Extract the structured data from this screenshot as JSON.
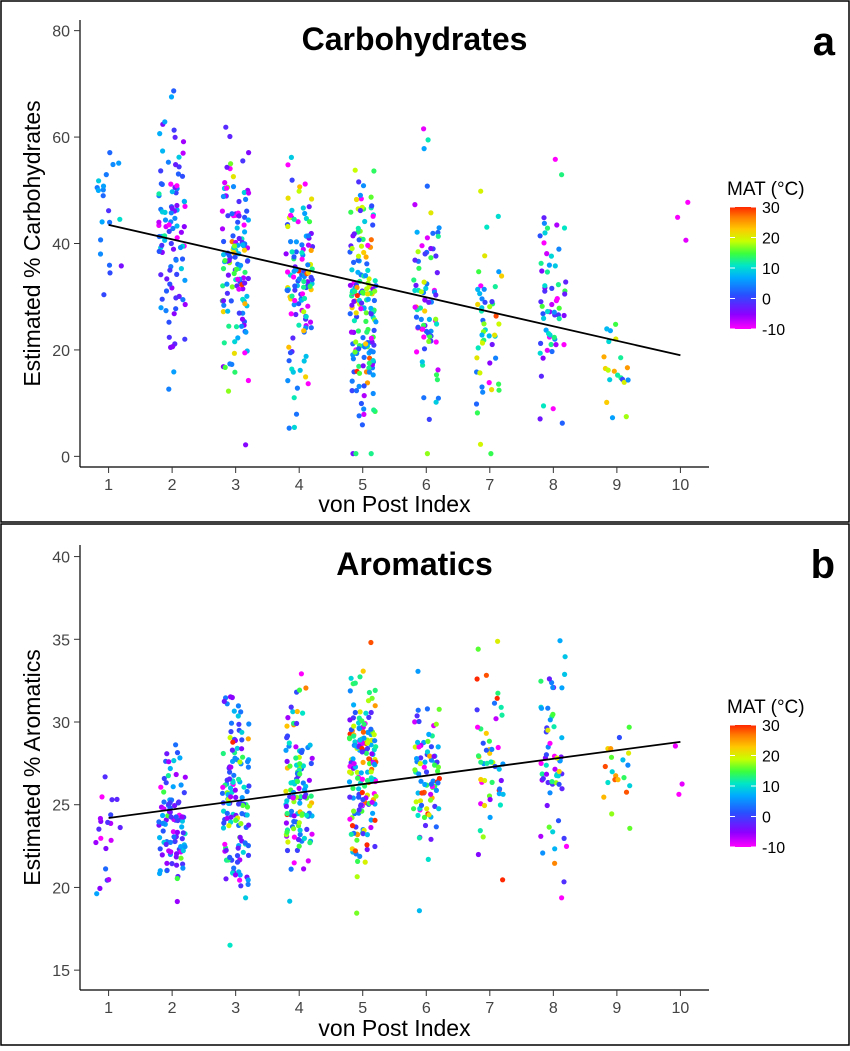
{
  "chart_data": [
    {
      "type": "scatter",
      "panel_letter": "a",
      "title": "Carbohydrates",
      "xlabel": "von Post Index",
      "ylabel": "Estimated % Carbohydrates",
      "xlim": [
        0.55,
        10.45
      ],
      "ylim": [
        -2,
        82
      ],
      "xticks": [
        1,
        2,
        3,
        4,
        5,
        6,
        7,
        8,
        9,
        10
      ],
      "yticks": [
        0,
        20,
        40,
        60,
        80
      ],
      "grid": false,
      "trend_line": {
        "x": [
          1,
          10
        ],
        "y": [
          43.5,
          19
        ]
      },
      "color_scale": {
        "title": "MAT (°C)",
        "min": -10,
        "max": 30,
        "ticks": [
          30,
          20,
          10,
          0,
          -10
        ]
      },
      "groups": [
        {
          "x": 1,
          "n": 20,
          "mean": 45,
          "sd": 8,
          "mat_mean": 3,
          "mat_sd": 4
        },
        {
          "x": 2,
          "n": 95,
          "mean": 43,
          "sd": 11,
          "mat_mean": 1,
          "mat_sd": 6
        },
        {
          "x": 3,
          "n": 130,
          "mean": 36,
          "sd": 11,
          "mat_mean": 4,
          "mat_sd": 9
        },
        {
          "x": 4,
          "n": 120,
          "mean": 34,
          "sd": 11,
          "mat_mean": 6,
          "mat_sd": 10
        },
        {
          "x": 5,
          "n": 170,
          "mean": 28,
          "sd": 11,
          "mat_mean": 9,
          "mat_sd": 11
        },
        {
          "x": 6,
          "n": 80,
          "mean": 31,
          "sd": 12,
          "mat_mean": 7,
          "mat_sd": 11
        },
        {
          "x": 7,
          "n": 50,
          "mean": 24,
          "sd": 10,
          "mat_mean": 11,
          "mat_sd": 11
        },
        {
          "x": 8,
          "n": 60,
          "mean": 30,
          "sd": 12,
          "mat_mean": 3,
          "mat_sd": 10
        },
        {
          "x": 9,
          "n": 20,
          "mean": 17,
          "sd": 5,
          "mat_mean": 17,
          "mat_sd": 9
        },
        {
          "x": 10,
          "n": 3,
          "mean": 44,
          "sd": 3,
          "mat_mean": -9,
          "mat_sd": 1
        }
      ]
    },
    {
      "type": "scatter",
      "panel_letter": "b",
      "title": "Aromatics",
      "xlabel": "von Post Index",
      "ylabel": "Estimated % Aromatics",
      "xlim": [
        0.55,
        10.45
      ],
      "ylim": [
        13.8,
        40.7
      ],
      "xticks": [
        1,
        2,
        3,
        4,
        5,
        6,
        7,
        8,
        9,
        10
      ],
      "yticks": [
        15,
        20,
        25,
        30,
        35,
        40
      ],
      "grid": false,
      "trend_line": {
        "x": [
          1,
          10
        ],
        "y": [
          24.2,
          28.8
        ]
      },
      "color_scale": {
        "title": "MAT (°C)",
        "min": -10,
        "max": 30,
        "ticks": [
          30,
          20,
          10,
          0,
          -10
        ]
      },
      "groups": [
        {
          "x": 1,
          "n": 20,
          "mean": 23.5,
          "sd": 1.8,
          "mat_mean": -3,
          "mat_sd": 5
        },
        {
          "x": 2,
          "n": 95,
          "mean": 24,
          "sd": 2,
          "mat_mean": 1,
          "mat_sd": 6
        },
        {
          "x": 3,
          "n": 130,
          "mean": 25.5,
          "sd": 3,
          "mat_mean": 4,
          "mat_sd": 9
        },
        {
          "x": 4,
          "n": 120,
          "mean": 26,
          "sd": 2.7,
          "mat_mean": 6,
          "mat_sd": 10
        },
        {
          "x": 5,
          "n": 170,
          "mean": 27,
          "sd": 3,
          "mat_mean": 9,
          "mat_sd": 11
        },
        {
          "x": 6,
          "n": 80,
          "mean": 27,
          "sd": 2.5,
          "mat_mean": 7,
          "mat_sd": 11
        },
        {
          "x": 7,
          "n": 50,
          "mean": 27.5,
          "sd": 3.5,
          "mat_mean": 11,
          "mat_sd": 11
        },
        {
          "x": 8,
          "n": 60,
          "mean": 27.5,
          "sd": 2.8,
          "mat_mean": 3,
          "mat_sd": 10
        },
        {
          "x": 9,
          "n": 20,
          "mean": 26.5,
          "sd": 2,
          "mat_mean": 15,
          "mat_sd": 9
        },
        {
          "x": 10,
          "n": 3,
          "mean": 27,
          "sd": 1,
          "mat_mean": -9,
          "mat_sd": 1
        }
      ]
    }
  ]
}
